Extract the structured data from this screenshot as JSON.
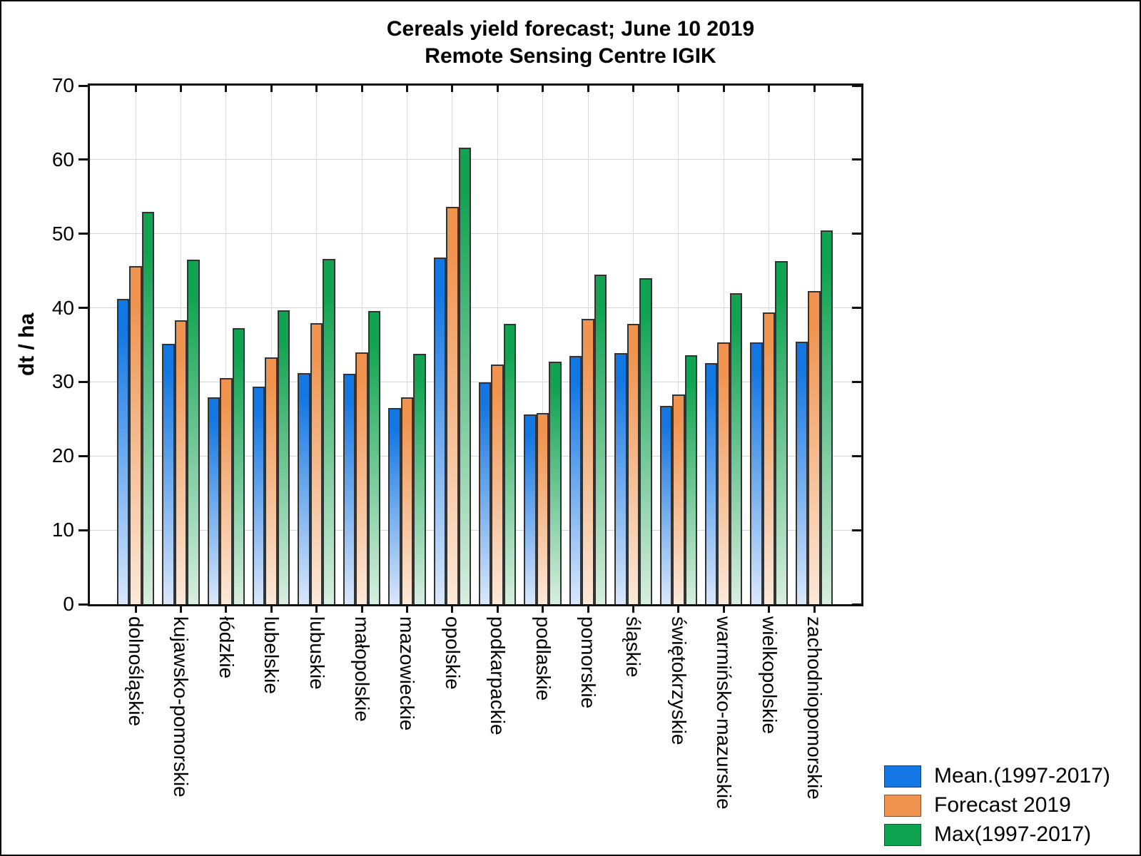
{
  "chart_data": {
    "type": "bar",
    "title": "Cereals yield forecast; June 10 2019",
    "subtitle": "Remote Sensing Centre IGIK",
    "ylabel": "dt / ha",
    "ylim": [
      0,
      70
    ],
    "yticks": [
      0,
      10,
      20,
      30,
      40,
      50,
      60,
      70
    ],
    "grid": "horizontal lines every 10 units; light vertical line at each category center",
    "legend_position": "bottom-right outside plot",
    "categories": [
      "dolnośląskie",
      "kujawsko-pomorskie",
      "łódzkie",
      "lubelskie",
      "lubuskie",
      "małopolskie",
      "mazowieckie",
      "opolskie",
      "podkarpackie",
      "podlaskie",
      "pomorskie",
      "śląskie",
      "świętokrzyskie",
      "warmińsko-mazurskie",
      "wielkopolskie",
      "zachodniopomorskie"
    ],
    "series": [
      {
        "name": "Mean.(1997-2017)",
        "color": "#1377E3",
        "fade_color": "#D9E7FB",
        "values": [
          41.2,
          35.1,
          27.9,
          29.4,
          31.2,
          31.1,
          26.5,
          46.8,
          29.9,
          25.6,
          33.5,
          33.9,
          26.8,
          32.5,
          35.3,
          35.4
        ]
      },
      {
        "name": "Forecast 2019",
        "color": "#F0934E",
        "fade_color": "#FBE9D9",
        "values": [
          45.6,
          38.3,
          30.5,
          33.3,
          37.9,
          34.0,
          27.9,
          53.6,
          32.4,
          25.8,
          38.5,
          37.8,
          28.3,
          35.3,
          39.4,
          42.3
        ]
      },
      {
        "name": "Max(1997-2017)",
        "color": "#10A351",
        "fade_color": "#D7EEDF",
        "values": [
          53.0,
          46.5,
          37.3,
          39.7,
          46.6,
          39.6,
          33.8,
          61.6,
          37.8,
          32.7,
          44.5,
          44.0,
          33.6,
          42.0,
          46.3,
          50.5
        ]
      }
    ]
  }
}
